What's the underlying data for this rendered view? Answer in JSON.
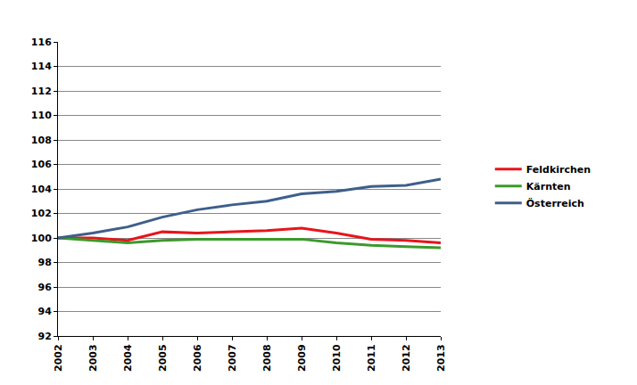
{
  "chart_data": {
    "type": "line",
    "x": [
      2002,
      2003,
      2004,
      2005,
      2006,
      2007,
      2008,
      2009,
      2010,
      2011,
      2012,
      2013
    ],
    "series": [
      {
        "name": "Feldkirchen",
        "color": "#e8141b",
        "values": [
          100,
          100.0,
          99.8,
          100.5,
          100.4,
          100.5,
          100.6,
          100.8,
          100.4,
          99.9,
          99.8,
          99.6
        ]
      },
      {
        "name": "Kärnten",
        "color": "#3b9a2a",
        "values": [
          100,
          99.8,
          99.6,
          99.8,
          99.9,
          99.9,
          99.9,
          99.9,
          99.6,
          99.4,
          99.3,
          99.2
        ]
      },
      {
        "name": "Österreich",
        "color": "#3e5f8a",
        "values": [
          100,
          100.4,
          100.9,
          101.7,
          102.3,
          102.7,
          103.0,
          103.6,
          103.8,
          104.2,
          104.3,
          104.8
        ]
      }
    ],
    "xlim": [
      2002,
      2013
    ],
    "xticks": [
      2002,
      2003,
      2004,
      2005,
      2006,
      2007,
      2008,
      2009,
      2010,
      2011,
      2012,
      2013
    ],
    "ylim": [
      92,
      116
    ],
    "yticks": [
      92,
      94,
      96,
      98,
      100,
      102,
      104,
      106,
      108,
      110,
      112,
      114,
      116
    ],
    "grid": true,
    "legend": "right"
  }
}
